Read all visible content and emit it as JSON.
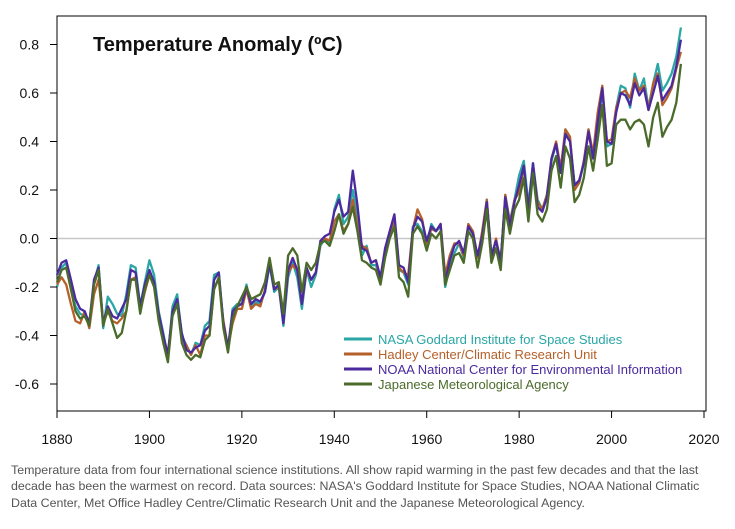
{
  "caption": "Temperature data from four international science institutions. All show rapid warming in the past few decades and that the last decade has been the warmest on record. Data sources: NASA's Goddard Institute for Space Studies, NOAA National Climatic Data Center, Met Office Hadley Centre/Climatic Research Unit and the Japanese Meteorological Agency.",
  "chart_data": {
    "type": "line",
    "title": "Temperature Anomaly (ºC)",
    "xlabel": "",
    "ylabel": "",
    "xlim": [
      1880,
      2020
    ],
    "ylim": [
      -0.7,
      0.9
    ],
    "x_ticks": [
      1880,
      1900,
      1920,
      1940,
      1960,
      1980,
      2000,
      2020
    ],
    "y_ticks": [
      -0.6,
      -0.4,
      -0.2,
      0.0,
      0.2,
      0.4,
      0.6,
      0.8
    ],
    "zero_line": true,
    "legend_position": "bottom-right",
    "x": [
      1880,
      1881,
      1882,
      1883,
      1884,
      1885,
      1886,
      1887,
      1888,
      1889,
      1890,
      1891,
      1892,
      1893,
      1894,
      1895,
      1896,
      1897,
      1898,
      1899,
      1900,
      1901,
      1902,
      1903,
      1904,
      1905,
      1906,
      1907,
      1908,
      1909,
      1910,
      1911,
      1912,
      1913,
      1914,
      1915,
      1916,
      1917,
      1918,
      1919,
      1920,
      1921,
      1922,
      1923,
      1924,
      1925,
      1926,
      1927,
      1928,
      1929,
      1930,
      1931,
      1932,
      1933,
      1934,
      1935,
      1936,
      1937,
      1938,
      1939,
      1940,
      1941,
      1942,
      1943,
      1944,
      1945,
      1946,
      1947,
      1948,
      1949,
      1950,
      1951,
      1952,
      1953,
      1954,
      1955,
      1956,
      1957,
      1958,
      1959,
      1960,
      1961,
      1962,
      1963,
      1964,
      1965,
      1966,
      1967,
      1968,
      1969,
      1970,
      1971,
      1972,
      1973,
      1974,
      1975,
      1976,
      1977,
      1978,
      1979,
      1980,
      1981,
      1982,
      1983,
      1984,
      1985,
      1986,
      1987,
      1988,
      1989,
      1990,
      1991,
      1992,
      1993,
      1994,
      1995,
      1996,
      1997,
      1998,
      1999,
      2000,
      2001,
      2002,
      2003,
      2004,
      2005,
      2006,
      2007,
      2008,
      2009,
      2010,
      2011,
      2012,
      2013,
      2014,
      2015
    ],
    "series": [
      {
        "name": "NASA Goddard Institute for Space Studies",
        "color": "#2aa6a6",
        "values": [
          -0.2,
          -0.12,
          -0.1,
          -0.2,
          -0.28,
          -0.31,
          -0.32,
          -0.35,
          -0.18,
          -0.11,
          -0.37,
          -0.24,
          -0.27,
          -0.31,
          -0.32,
          -0.23,
          -0.11,
          -0.12,
          -0.28,
          -0.18,
          -0.09,
          -0.15,
          -0.3,
          -0.39,
          -0.49,
          -0.28,
          -0.23,
          -0.4,
          -0.44,
          -0.48,
          -0.43,
          -0.44,
          -0.36,
          -0.34,
          -0.15,
          -0.14,
          -0.36,
          -0.46,
          -0.29,
          -0.27,
          -0.27,
          -0.19,
          -0.28,
          -0.26,
          -0.27,
          -0.22,
          -0.11,
          -0.22,
          -0.2,
          -0.36,
          -0.16,
          -0.1,
          -0.16,
          -0.29,
          -0.13,
          -0.2,
          -0.15,
          -0.03,
          -0.0,
          -0.02,
          0.12,
          0.18,
          0.06,
          0.09,
          0.2,
          0.09,
          -0.07,
          -0.03,
          -0.11,
          -0.11,
          -0.17,
          -0.07,
          0.01,
          0.08,
          -0.13,
          -0.14,
          -0.19,
          0.05,
          0.06,
          0.03,
          -0.03,
          0.06,
          0.03,
          0.05,
          -0.2,
          -0.11,
          -0.06,
          -0.02,
          -0.08,
          0.05,
          0.03,
          -0.08,
          0.01,
          0.16,
          -0.07,
          -0.01,
          -0.1,
          0.18,
          0.07,
          0.16,
          0.26,
          0.32,
          0.14,
          0.31,
          0.16,
          0.12,
          0.18,
          0.32,
          0.39,
          0.27,
          0.45,
          0.41,
          0.22,
          0.23,
          0.31,
          0.45,
          0.33,
          0.46,
          0.61,
          0.38,
          0.39,
          0.54,
          0.63,
          0.62,
          0.54,
          0.68,
          0.61,
          0.66,
          0.54,
          0.64,
          0.72,
          0.61,
          0.64,
          0.68,
          0.75,
          0.87
        ]
      },
      {
        "name": "Hadley Center/Climatic Research Unit",
        "color": "#b5602a",
        "values": [
          -0.19,
          -0.16,
          -0.19,
          -0.27,
          -0.34,
          -0.35,
          -0.3,
          -0.37,
          -0.23,
          -0.17,
          -0.35,
          -0.3,
          -0.34,
          -0.35,
          -0.33,
          -0.3,
          -0.17,
          -0.16,
          -0.3,
          -0.22,
          -0.15,
          -0.19,
          -0.32,
          -0.42,
          -0.47,
          -0.31,
          -0.26,
          -0.41,
          -0.44,
          -0.48,
          -0.44,
          -0.48,
          -0.4,
          -0.4,
          -0.2,
          -0.17,
          -0.34,
          -0.45,
          -0.35,
          -0.29,
          -0.29,
          -0.21,
          -0.29,
          -0.27,
          -0.28,
          -0.21,
          -0.1,
          -0.21,
          -0.2,
          -0.34,
          -0.14,
          -0.11,
          -0.13,
          -0.27,
          -0.13,
          -0.17,
          -0.14,
          -0.02,
          -0.0,
          -0.01,
          0.07,
          0.1,
          0.03,
          0.06,
          0.16,
          0.05,
          -0.03,
          -0.04,
          -0.1,
          -0.09,
          -0.17,
          -0.06,
          0.01,
          0.09,
          -0.12,
          -0.14,
          -0.15,
          0.04,
          0.12,
          0.08,
          -0.02,
          0.04,
          0.03,
          0.06,
          -0.15,
          -0.07,
          -0.02,
          -0.02,
          -0.07,
          0.06,
          0.03,
          -0.08,
          0.03,
          0.16,
          -0.08,
          0.0,
          -0.1,
          0.18,
          0.06,
          0.16,
          0.19,
          0.3,
          0.09,
          0.3,
          0.15,
          0.12,
          0.18,
          0.33,
          0.4,
          0.29,
          0.45,
          0.42,
          0.2,
          0.23,
          0.32,
          0.45,
          0.35,
          0.52,
          0.63,
          0.4,
          0.41,
          0.54,
          0.6,
          0.61,
          0.58,
          0.66,
          0.61,
          0.63,
          0.53,
          0.64,
          0.68,
          0.55,
          0.58,
          0.62,
          0.7,
          0.77
        ]
      },
      {
        "name": "NOAA National Center for Environmental Information",
        "color": "#4b2aa0",
        "values": [
          -0.15,
          -0.1,
          -0.09,
          -0.17,
          -0.25,
          -0.29,
          -0.3,
          -0.35,
          -0.17,
          -0.12,
          -0.35,
          -0.28,
          -0.32,
          -0.33,
          -0.29,
          -0.25,
          -0.13,
          -0.14,
          -0.28,
          -0.19,
          -0.13,
          -0.18,
          -0.31,
          -0.4,
          -0.48,
          -0.3,
          -0.25,
          -0.39,
          -0.46,
          -0.47,
          -0.45,
          -0.44,
          -0.38,
          -0.36,
          -0.17,
          -0.14,
          -0.35,
          -0.45,
          -0.3,
          -0.28,
          -0.27,
          -0.2,
          -0.27,
          -0.25,
          -0.26,
          -0.22,
          -0.1,
          -0.21,
          -0.19,
          -0.35,
          -0.13,
          -0.08,
          -0.13,
          -0.27,
          -0.12,
          -0.17,
          -0.14,
          -0.01,
          0.01,
          0.02,
          0.11,
          0.16,
          0.09,
          0.11,
          0.28,
          0.14,
          -0.04,
          -0.05,
          -0.1,
          -0.09,
          -0.16,
          -0.04,
          0.03,
          0.1,
          -0.11,
          -0.12,
          -0.18,
          0.04,
          0.09,
          0.07,
          -0.01,
          0.05,
          0.03,
          0.06,
          -0.18,
          -0.09,
          -0.03,
          -0.01,
          -0.06,
          0.05,
          0.02,
          -0.07,
          0.01,
          0.15,
          -0.07,
          -0.01,
          -0.09,
          0.17,
          0.05,
          0.15,
          0.22,
          0.3,
          0.12,
          0.31,
          0.13,
          0.11,
          0.17,
          0.33,
          0.39,
          0.27,
          0.43,
          0.4,
          0.22,
          0.24,
          0.31,
          0.44,
          0.33,
          0.48,
          0.62,
          0.4,
          0.39,
          0.52,
          0.6,
          0.59,
          0.55,
          0.64,
          0.59,
          0.62,
          0.53,
          0.6,
          0.67,
          0.57,
          0.6,
          0.63,
          0.71,
          0.82
        ]
      },
      {
        "name": "Japanese Meteorological Agency",
        "color": "#4a6b2a",
        "values": [
          -0.18,
          -0.13,
          -0.12,
          -0.21,
          -0.3,
          -0.33,
          -0.32,
          -0.36,
          -0.19,
          -0.13,
          -0.36,
          -0.29,
          -0.35,
          -0.41,
          -0.39,
          -0.3,
          -0.17,
          -0.17,
          -0.31,
          -0.21,
          -0.15,
          -0.2,
          -0.34,
          -0.43,
          -0.51,
          -0.32,
          -0.27,
          -0.43,
          -0.48,
          -0.5,
          -0.48,
          -0.49,
          -0.42,
          -0.4,
          -0.21,
          -0.16,
          -0.37,
          -0.47,
          -0.33,
          -0.28,
          -0.24,
          -0.2,
          -0.25,
          -0.24,
          -0.23,
          -0.18,
          -0.08,
          -0.19,
          -0.18,
          -0.31,
          -0.07,
          -0.04,
          -0.07,
          -0.22,
          -0.1,
          -0.13,
          -0.1,
          -0.02,
          -0.01,
          -0.03,
          0.03,
          0.1,
          0.02,
          0.06,
          0.13,
          0.03,
          -0.09,
          -0.1,
          -0.12,
          -0.13,
          -0.19,
          -0.08,
          0.0,
          0.05,
          -0.16,
          -0.18,
          -0.24,
          0.02,
          0.05,
          0.02,
          -0.05,
          0.02,
          0.0,
          0.03,
          -0.19,
          -0.13,
          -0.07,
          -0.06,
          -0.1,
          0.03,
          0.0,
          -0.12,
          -0.02,
          0.12,
          -0.1,
          -0.04,
          -0.13,
          0.12,
          0.02,
          0.12,
          0.16,
          0.25,
          0.07,
          0.27,
          0.1,
          0.07,
          0.12,
          0.28,
          0.34,
          0.21,
          0.38,
          0.33,
          0.15,
          0.18,
          0.25,
          0.38,
          0.28,
          0.41,
          0.55,
          0.3,
          0.31,
          0.47,
          0.49,
          0.49,
          0.45,
          0.48,
          0.49,
          0.47,
          0.38,
          0.5,
          0.56,
          0.42,
          0.46,
          0.49,
          0.56,
          0.72
        ]
      }
    ]
  }
}
